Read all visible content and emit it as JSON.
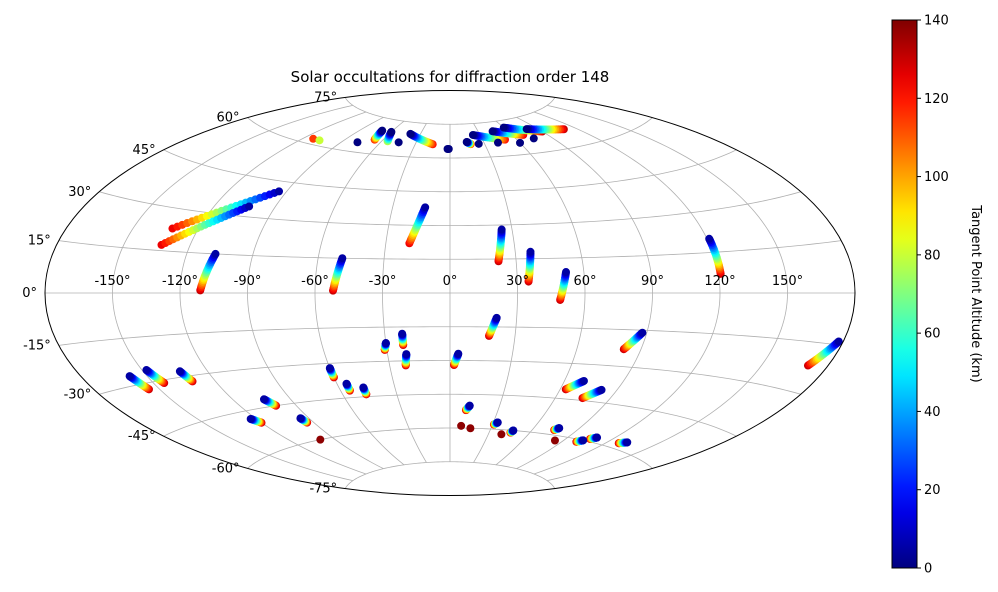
{
  "chart_data": {
    "type": "scatter",
    "projection": "aitoff",
    "title": "Solar occultations for diffraction order 148",
    "grid": true,
    "lon_tick_labels": [
      "-150°",
      "-120°",
      "-90°",
      "-60°",
      "-30°",
      "0°",
      "30°",
      "60°",
      "90°",
      "120°",
      "150°"
    ],
    "lat_tick_labels": [
      "-75°",
      "-60°",
      "-45°",
      "-30°",
      "-15°",
      "0°",
      "15°",
      "30°",
      "45°",
      "60°",
      "75°"
    ],
    "colorbar": {
      "label": "Tangent Point Altitude (km)",
      "colormap": "jet",
      "range": [
        0,
        140
      ],
      "tick_labels": [
        "0",
        "20",
        "40",
        "60",
        "80",
        "100",
        "120",
        "140"
      ]
    },
    "tracks": [
      {
        "lon_start": -94,
        "lat_start": 41,
        "alt_start": 5,
        "lon_end": -132,
        "lat_end": 23,
        "alt_end": 125
      },
      {
        "lon_start": -103,
        "lat_start": 34,
        "alt_start": 5,
        "lon_end": -133,
        "lat_end": 17,
        "alt_end": 125
      },
      {
        "lon_start": -107,
        "lat_start": 15,
        "alt_start": 5,
        "lon_end": -111,
        "lat_end": 1,
        "alt_end": 130
      },
      {
        "lon_start": -49,
        "lat_start": 15,
        "alt_start": 5,
        "lon_end": -52,
        "lat_end": 1,
        "alt_end": 130
      },
      {
        "lon_start": -13,
        "lat_start": 38,
        "alt_start": 5,
        "lon_end": -19,
        "lat_end": 22,
        "alt_end": 125
      },
      {
        "lon_start": 25,
        "lat_start": 28,
        "alt_start": 5,
        "lon_end": 22,
        "lat_end": 14,
        "alt_end": 130
      },
      {
        "lon_start": 37,
        "lat_start": 18,
        "alt_start": 5,
        "lon_end": 35,
        "lat_end": 5,
        "alt_end": 130
      },
      {
        "lon_start": 52,
        "lat_start": 9,
        "alt_start": 5,
        "lon_end": 49,
        "lat_end": -3,
        "alt_end": 130
      },
      {
        "lon_start": 121,
        "lat_start": 20,
        "alt_start": 5,
        "lon_end": 121,
        "lat_end": 7,
        "alt_end": 130
      },
      {
        "lon_start": 21,
        "lat_start": -11,
        "alt_start": 5,
        "lon_end": 18,
        "lat_end": -19,
        "alt_end": 130
      },
      {
        "lon_start": 88,
        "lat_start": -16,
        "alt_start": 5,
        "lon_end": 82,
        "lat_end": -23,
        "alt_end": 130
      },
      {
        "lon_start": 178,
        "lat_start": -14,
        "alt_start": 5,
        "lon_end": 171,
        "lat_end": -22,
        "alt_end": 130
      },
      {
        "lon_start": -30,
        "lat_start": -22,
        "alt_start": 5,
        "lon_end": -31,
        "lat_end": -25,
        "alt_end": 130
      },
      {
        "lon_start": -22,
        "lat_start": -18,
        "alt_start": 5,
        "lon_end": -22,
        "lat_end": -23,
        "alt_end": 130
      },
      {
        "lon_start": -21,
        "lat_start": -27,
        "alt_start": 5,
        "lon_end": -22,
        "lat_end": -32,
        "alt_end": 130
      },
      {
        "lon_start": 4,
        "lat_start": -27,
        "alt_start": 5,
        "lon_end": 2,
        "lat_end": -32,
        "alt_end": 130
      },
      {
        "lon_start": -60,
        "lat_start": -32,
        "alt_start": 5,
        "lon_end": -60,
        "lat_end": -36,
        "alt_end": 130
      },
      {
        "lon_start": -55,
        "lat_start": -39,
        "alt_start": 5,
        "lon_end": -55,
        "lat_end": -42,
        "alt_end": 130
      },
      {
        "lon_start": -47,
        "lat_start": -41,
        "alt_start": 5,
        "lon_end": -47,
        "lat_end": -44,
        "alt_end": 130
      },
      {
        "lon_start": -148,
        "lat_start": -26,
        "alt_start": 5,
        "lon_end": -145,
        "lat_end": -31,
        "alt_end": 130
      },
      {
        "lon_start": -158,
        "lat_start": -27,
        "alt_start": 5,
        "lon_end": -155,
        "lat_end": -32,
        "alt_end": 130
      },
      {
        "lon_start": -133,
        "lat_start": -28,
        "alt_start": 5,
        "lon_end": -131,
        "lat_end": -32,
        "alt_end": 130
      },
      {
        "lon_start": -104,
        "lat_start": -42,
        "alt_start": 5,
        "lon_end": -101,
        "lat_end": -45,
        "alt_end": 130
      },
      {
        "lon_start": -123,
        "lat_start": -48,
        "alt_start": 5,
        "lon_end": -120,
        "lat_end": -50,
        "alt_end": 130
      },
      {
        "lon_start": -95,
        "lat_start": -51,
        "alt_start": 5,
        "lon_end": -94,
        "lat_end": -53,
        "alt_end": 130
      },
      {
        "lon_start": 12,
        "lat_start": -50,
        "alt_start": 5,
        "lon_end": 10,
        "lat_end": -52,
        "alt_end": 130
      },
      {
        "lon_start": 70,
        "lat_start": -37,
        "alt_start": 5,
        "lon_end": 63,
        "lat_end": -41,
        "alt_end": 130
      },
      {
        "lon_start": 82,
        "lat_start": -40,
        "alt_start": 5,
        "lon_end": 75,
        "lat_end": -44,
        "alt_end": 130
      },
      {
        "lon_start": 33,
        "lat_start": -57,
        "alt_start": 5,
        "lon_end": 31,
        "lat_end": -58,
        "alt_end": 130
      },
      {
        "lon_start": 77,
        "lat_start": -57,
        "alt_start": 5,
        "lon_end": 75,
        "lat_end": -58,
        "alt_end": 130
      },
      {
        "lon_start": 109,
        "lat_start": -58,
        "alt_start": 5,
        "lon_end": 106,
        "lat_end": -59,
        "alt_end": 130
      },
      {
        "lon_start": 132,
        "lat_start": -57,
        "alt_start": 5,
        "lon_end": 128,
        "lat_end": -58,
        "alt_end": 130
      },
      {
        "lon_start": 103,
        "lat_start": -60,
        "alt_start": 5,
        "lon_end": 100,
        "lat_end": -61,
        "alt_end": 130
      },
      {
        "lon_start": 47,
        "lat_start": -60,
        "alt_start": 5,
        "lon_end": 46,
        "lat_end": -61,
        "alt_end": 130
      },
      {
        "lon_start": -40,
        "lat_start": 70,
        "alt_start": 0,
        "lon_end": -15,
        "lat_end": 66,
        "alt_end": 120
      },
      {
        "lon_start": -60,
        "lat_start": 70,
        "alt_start": 0,
        "lon_end": -55,
        "lat_end": 66,
        "alt_end": 80
      },
      {
        "lon_start": -70,
        "lat_start": 70,
        "alt_start": 0,
        "lon_end": -67,
        "lat_end": 66,
        "alt_end": 120
      },
      {
        "lon_start": 23,
        "lat_start": 70,
        "alt_start": 0,
        "lon_end": 50,
        "lat_end": 67,
        "alt_end": 120
      },
      {
        "lon_start": 45,
        "lat_start": 71,
        "alt_start": 0,
        "lon_end": 70,
        "lat_end": 68,
        "alt_end": 125
      },
      {
        "lon_start": 60,
        "lat_start": 72,
        "alt_start": 0,
        "lon_end": 90,
        "lat_end": 68,
        "alt_end": 130
      },
      {
        "lon_start": 15,
        "lat_start": 67,
        "alt_start": 0,
        "lon_end": 18,
        "lat_end": 66,
        "alt_end": 120
      },
      {
        "lon_start": 80,
        "lat_start": 70,
        "alt_start": 0,
        "lon_end": 110,
        "lat_end": 67,
        "alt_end": 130
      }
    ],
    "points": [
      {
        "lon": -100,
        "lat": -60,
        "alt": 138
      },
      {
        "lon": 8,
        "lat": -59,
        "alt": 138
      },
      {
        "lon": 15,
        "lat": -60,
        "alt": 138
      },
      {
        "lon": 40,
        "lat": -62,
        "alt": 138
      },
      {
        "lon": 84,
        "lat": -62,
        "alt": 138
      },
      {
        "lon": -1,
        "lat": 64,
        "alt": 0
      },
      {
        "lon": -2,
        "lat": 64,
        "alt": 0
      },
      {
        "lon": -45,
        "lat": 66,
        "alt": 0
      },
      {
        "lon": -78,
        "lat": 64,
        "alt": 0
      },
      {
        "lon": 25,
        "lat": 66,
        "alt": 0
      },
      {
        "lon": 42,
        "lat": 66,
        "alt": 0
      },
      {
        "lon": 60,
        "lat": 65,
        "alt": 0
      },
      {
        "lon": 75,
        "lat": 66,
        "alt": 0
      },
      {
        "lon": -113,
        "lat": 62,
        "alt": 115
      },
      {
        "lon": -107,
        "lat": 62,
        "alt": 80
      }
    ]
  }
}
